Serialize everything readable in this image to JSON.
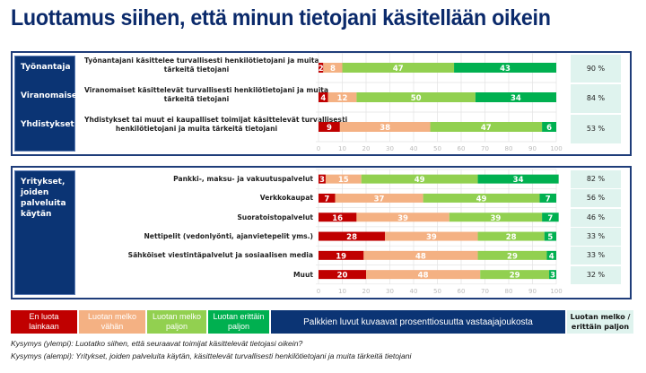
{
  "title": "Luottamus siihen, että minun tietojani käsitellään oikein",
  "colors": {
    "none": "#c00000",
    "little": "#f4b183",
    "fairly": "#92d050",
    "very": "#00b050",
    "navy": "#0b3474",
    "pct_bg": "#dff3ee"
  },
  "chart_data": [
    {
      "type": "bar",
      "orientation": "horizontal-stacked",
      "group_label": "",
      "xlim": [
        0,
        100
      ],
      "xticks": [
        "0",
        "10",
        "20",
        "30",
        "40",
        "50",
        "60",
        "70",
        "80",
        "90",
        "100"
      ],
      "series_names": [
        "En luota lainkaan",
        "Luotan melko vähän",
        "Luotan melko paljon",
        "Luotan erittäin paljon"
      ],
      "rows": [
        {
          "side": "Työnantaja",
          "label": "Työnantajani käsittelee turvallisesti henkilötietojani ja muita tärkeitä tietojani",
          "values": [
            2,
            8,
            47,
            43
          ],
          "total": "90 %"
        },
        {
          "side": "Viranomaiset",
          "label": "Viranomaiset käsittelevät turvallisesti henkilötietojani ja muita tärkeitä tietojani",
          "values": [
            4,
            12,
            50,
            34
          ],
          "total": "84 %"
        },
        {
          "side": "Yhdistykset",
          "label": "Yhdistykset tai muut ei kaupalliset toimijat käsittelevät turvallisesti henkilötietojani ja muita tärkeitä tietojani",
          "values": [
            9,
            38,
            47,
            6
          ],
          "total": "53 %"
        }
      ]
    },
    {
      "type": "bar",
      "orientation": "horizontal-stacked",
      "group_label": "Yritykset, joiden palveluita käytän",
      "xlim": [
        0,
        100
      ],
      "xticks": [
        "0",
        "10",
        "20",
        "30",
        "40",
        "50",
        "60",
        "70",
        "80",
        "90",
        "100"
      ],
      "series_names": [
        "En luota lainkaan",
        "Luotan melko vähän",
        "Luotan melko paljon",
        "Luotan erittäin paljon"
      ],
      "rows": [
        {
          "label": "Pankki-, maksu- ja vakuutuspalvelut",
          "values": [
            3,
            15,
            49,
            34
          ],
          "total": "82 %"
        },
        {
          "label": "Verkkokaupat",
          "values": [
            7,
            37,
            49,
            7
          ],
          "total": "56 %"
        },
        {
          "label": "Suoratoistopalvelut",
          "values": [
            16,
            39,
            39,
            7
          ],
          "total": "46 %"
        },
        {
          "label": "Nettipelit (vedonlyönti, ajanvietepelit yms.)",
          "values": [
            28,
            39,
            28,
            5
          ],
          "total": "33 %"
        },
        {
          "label": "Sähköiset viestintäpalvelut ja sosiaalisen media",
          "values": [
            19,
            48,
            29,
            4
          ],
          "total": "33 %"
        },
        {
          "label": "Muut",
          "values": [
            20,
            48,
            29,
            3
          ],
          "total": "32 %"
        }
      ]
    }
  ],
  "top_labels": {
    "line1": [
      "Työnantajani käsittelee turvallisesti henkilötietojani ja muita",
      "tärkeitä tietojani"
    ],
    "line2": [
      "Viranomaiset käsittelevät turvallisesti henkilötietojani ja muita",
      "tärkeitä tietojani"
    ],
    "line3": [
      "Yhdistykset tai muut ei kaupalliset toimijat käsittelevät turvallisesti",
      "henkilötietojani ja muita tärkeitä tietojani"
    ]
  },
  "bottom_side": [
    "Yritykset,",
    "joiden",
    "palveluita",
    "käytän"
  ],
  "legend": {
    "none": [
      "En luota",
      "lainkaan"
    ],
    "little": [
      "Luotan melko",
      "vähän"
    ],
    "fairly": [
      "Luotan melko",
      "paljon"
    ],
    "very": [
      "Luotan erittäin",
      "paljon"
    ],
    "note": "Palkkien luvut kuvaavat prosenttiosuutta vastaajajoukosta",
    "total": [
      "Luotan melko /",
      "erittäin paljon"
    ]
  },
  "questions": {
    "upper": "Kysymys (ylempi): Luotatko siihen, että seuraavat toimijat käsittelevät tietojasi oikein?",
    "lower": "Kysymys (alempi): Yritykset, joiden palveluita käytän, käsittelevät turvallisesti henkilötietojani ja muita tärkeitä tietojani"
  }
}
